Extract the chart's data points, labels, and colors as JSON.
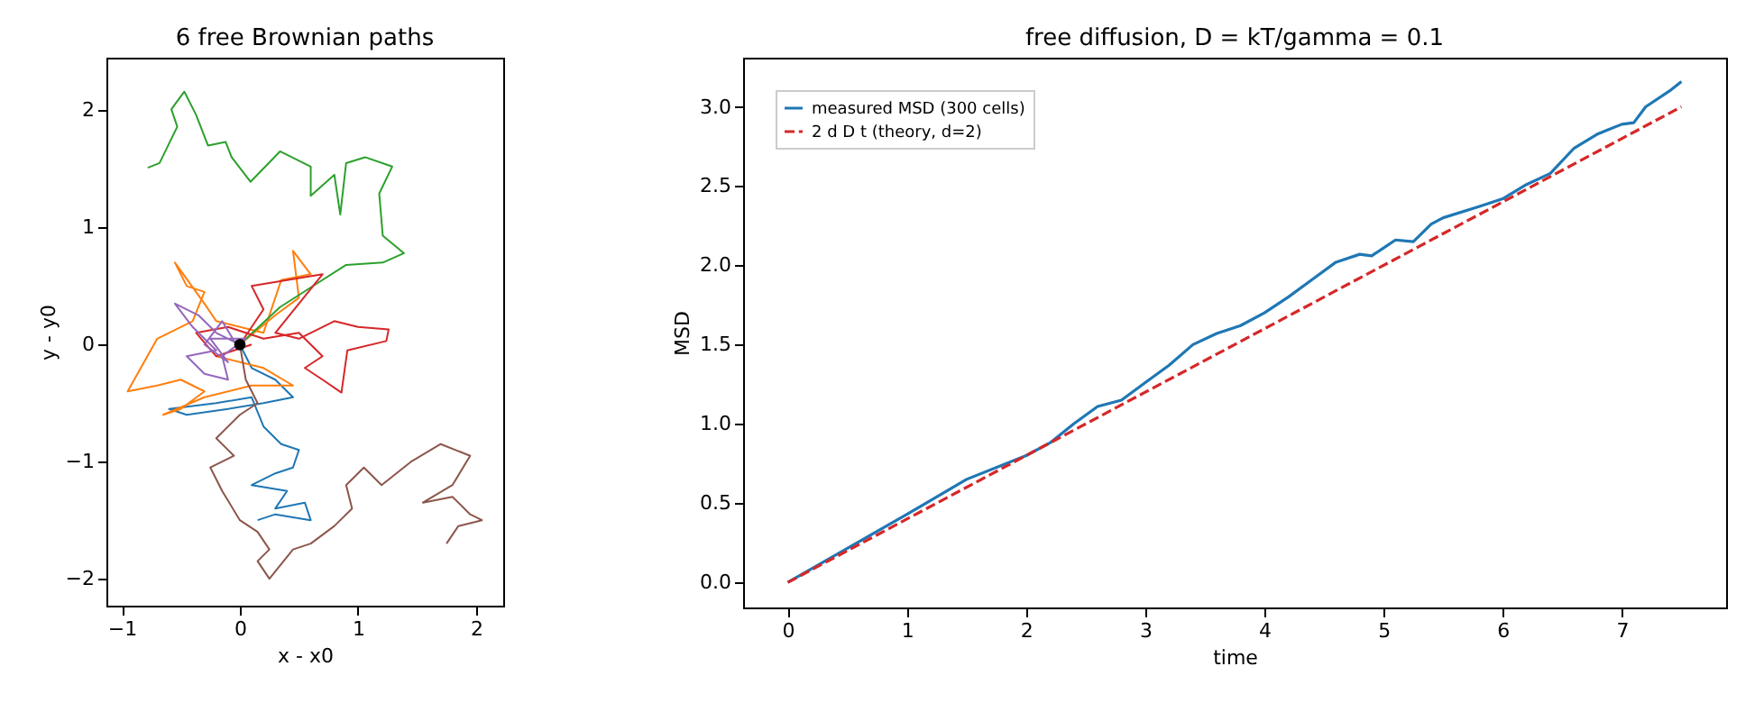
{
  "chart_data": [
    {
      "type": "line",
      "title": "6 free Brownian paths",
      "xlabel": "x - x0",
      "ylabel": "y - y0",
      "xlim": [
        -1.13,
        2.23
      ],
      "ylim": [
        -2.23,
        2.45
      ],
      "xticks": [
        -1,
        0,
        1,
        2
      ],
      "yticks": [
        -2,
        -1,
        0,
        1,
        2
      ],
      "legend": false,
      "grid": false,
      "series": [
        {
          "color": "#1f77b4",
          "x": [
            0,
            0.1,
            0.3,
            0.45,
            0.2,
            -0.1,
            -0.45,
            -0.6,
            -0.2,
            0.1,
            0.2,
            0.35,
            0.5,
            0.45,
            0.3,
            0.1,
            0.4,
            0.3,
            0.55,
            0.6,
            0.3,
            0.15
          ],
          "values": [
            0,
            -0.2,
            -0.3,
            -0.45,
            -0.5,
            -0.55,
            -0.6,
            -0.55,
            -0.5,
            -0.45,
            -0.7,
            -0.85,
            -0.9,
            -1.05,
            -1.1,
            -1.2,
            -1.25,
            -1.4,
            -1.35,
            -1.5,
            -1.45,
            -1.5
          ]
        },
        {
          "color": "#ff7f0e",
          "x": [
            0,
            0.3,
            0.5,
            0.45,
            0.6,
            0.35,
            0.2,
            -0.2,
            -0.3,
            -0.55,
            -0.45,
            -0.3,
            -0.4,
            -0.7,
            -0.95,
            -0.7,
            -0.5,
            -0.3,
            -0.5,
            -0.65,
            -0.3,
            0.1,
            0.45,
            0.2,
            -0.2
          ],
          "values": [
            0,
            0.25,
            0.4,
            0.8,
            0.6,
            0.55,
            0.1,
            0.2,
            0.35,
            0.7,
            0.5,
            0.45,
            0.2,
            0.05,
            -0.4,
            -0.35,
            -0.3,
            -0.4,
            -0.55,
            -0.6,
            -0.45,
            -0.35,
            -0.35,
            -0.2,
            -0.1
          ]
        },
        {
          "color": "#2ca02c",
          "x": [
            0,
            0.34,
            0.65,
            0.9,
            1.21,
            1.39,
            1.21,
            1.18,
            1.29,
            1.06,
            0.9,
            0.85,
            0.8,
            0.6,
            0.6,
            0.34,
            0.09,
            -0.07,
            -0.12,
            -0.27,
            -0.37,
            -0.47,
            -0.58,
            -0.53,
            -0.68,
            -0.78
          ],
          "values": [
            0,
            0.32,
            0.52,
            0.68,
            0.7,
            0.78,
            0.93,
            1.29,
            1.52,
            1.6,
            1.55,
            1.11,
            1.45,
            1.27,
            1.52,
            1.65,
            1.39,
            1.6,
            1.73,
            1.7,
            1.96,
            2.16,
            2.01,
            1.86,
            1.55,
            1.51
          ]
        },
        {
          "color": "#d62728",
          "x": [
            0,
            0.1,
            0.2,
            0.1,
            0.4,
            0.7,
            0.5,
            0.3,
            0.5,
            0.8,
            1.0,
            1.26,
            1.24,
            0.91,
            0.86,
            0.7,
            0.55,
            0.7,
            0.5,
            0.2,
            -0.1,
            -0.37,
            -0.2,
            0.1
          ],
          "values": [
            0,
            0.15,
            0.3,
            0.5,
            0.55,
            0.6,
            0.35,
            0.1,
            0.05,
            0.2,
            0.15,
            0.13,
            0.03,
            -0.05,
            -0.41,
            -0.3,
            -0.2,
            -0.1,
            0.1,
            0.05,
            0.15,
            0.1,
            -0.1,
            0
          ]
        },
        {
          "color": "#9467bd",
          "x": [
            0,
            -0.2,
            -0.35,
            -0.55,
            -0.4,
            -0.2,
            -0.45,
            -0.3,
            -0.1,
            -0.15,
            0.05,
            -0.25,
            -0.1,
            -0.3,
            -0.15,
            0
          ],
          "values": [
            0,
            0.1,
            0.25,
            0.35,
            0.15,
            -0.05,
            -0.1,
            -0.25,
            -0.3,
            -0.1,
            0.05,
            0.05,
            -0.15,
            0,
            0.2,
            -0.05
          ]
        },
        {
          "color": "#8c564b",
          "x": [
            0,
            0.05,
            0.15,
            0,
            -0.2,
            -0.05,
            -0.25,
            -0.15,
            0,
            0.15,
            0.25,
            0.15,
            0.25,
            0.45,
            0.6,
            0.8,
            0.95,
            0.9,
            1.05,
            1.2,
            1.45,
            1.7,
            1.95,
            1.8,
            1.55,
            1.8,
            1.95,
            2.05,
            1.85,
            1.75
          ],
          "values": [
            0,
            -0.3,
            -0.5,
            -0.6,
            -0.8,
            -0.95,
            -1.05,
            -1.25,
            -1.5,
            -1.6,
            -1.75,
            -1.85,
            -2.0,
            -1.75,
            -1.7,
            -1.55,
            -1.4,
            -1.2,
            -1.05,
            -1.2,
            -1.0,
            -0.85,
            -0.95,
            -1.2,
            -1.35,
            -1.3,
            -1.45,
            -1.5,
            -1.55,
            -1.7
          ]
        },
        {
          "type": "scatter",
          "marker": "circle",
          "color": "#000000",
          "x": [
            0
          ],
          "values": [
            0
          ]
        }
      ]
    },
    {
      "type": "line",
      "title": "free diffusion, D = kT/gamma = 0.1",
      "xlabel": "time",
      "ylabel": "MSD",
      "xlim": [
        -0.375,
        7.875
      ],
      "ylim": [
        -0.158,
        3.31
      ],
      "xticks": [
        0,
        1,
        2,
        3,
        4,
        5,
        6,
        7
      ],
      "yticks": [
        {
          "value": 0,
          "label": "0.0"
        },
        {
          "value": 0.5,
          "label": "0.5"
        },
        {
          "value": 1,
          "label": "1.0"
        },
        {
          "value": 1.5,
          "label": "1.5"
        },
        {
          "value": 2,
          "label": "2.0"
        },
        {
          "value": 2.5,
          "label": "2.5"
        },
        {
          "value": 3,
          "label": "3.0"
        }
      ],
      "legend": "top left",
      "grid": false,
      "series": [
        {
          "name": "measured MSD (300 cells)",
          "color": "#1f77b4",
          "line_style": "solid",
          "x": [
            0,
            1,
            1.5,
            2,
            2.2,
            2.4,
            2.6,
            2.8,
            3,
            3.2,
            3.4,
            3.6,
            3.8,
            4,
            4.2,
            4.4,
            4.6,
            4.8,
            4.9,
            5,
            5.1,
            5.25,
            5.4,
            5.5,
            5.8,
            6,
            6.2,
            6.4,
            6.6,
            6.8,
            7,
            7.1,
            7.2,
            7.4,
            7.5
          ],
          "values": [
            0,
            0.43,
            0.65,
            0.8,
            0.88,
            1,
            1.11,
            1.15,
            1.26,
            1.37,
            1.5,
            1.57,
            1.62,
            1.7,
            1.8,
            1.91,
            2.02,
            2.07,
            2.06,
            2.11,
            2.16,
            2.15,
            2.26,
            2.3,
            2.37,
            2.42,
            2.51,
            2.58,
            2.74,
            2.83,
            2.89,
            2.9,
            3,
            3.1,
            3.16
          ]
        },
        {
          "name": "2 d D t  (theory, d=2)",
          "color": "#d62728",
          "line_style": "dashed",
          "x": [
            0,
            7.5
          ],
          "values": [
            0,
            3
          ]
        }
      ]
    }
  ]
}
